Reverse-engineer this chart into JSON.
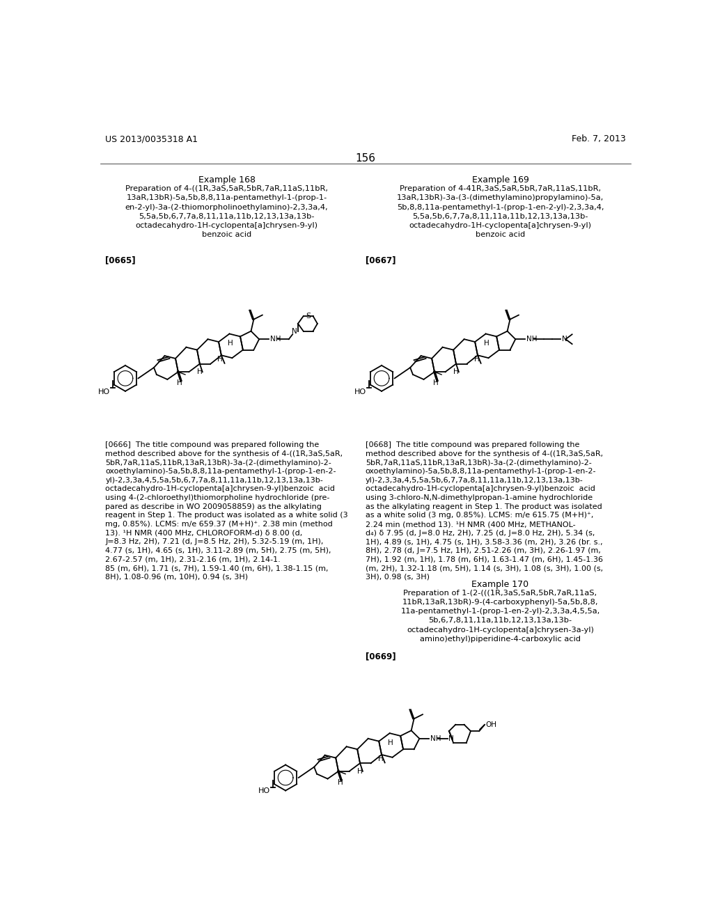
{
  "page_number": "156",
  "patent_number": "US 2013/0035318 A1",
  "patent_date": "Feb. 7, 2013",
  "bg_color": "#ffffff",
  "text_color": "#000000",
  "header_fontsize": 9,
  "body_fontsize": 8,
  "title_fontsize": 9,
  "example168_title": "Example 168",
  "example168_prep": "Preparation of 4-((1R,3aS,5aR,5bR,7aR,11aS,11bR,\n13aR,13bR)-5a,5b,8,8,11a-pentamethyl-1-(prop-1-\nen-2-yl)-3a-(2-thiomorpholinoethylamino)-2,3,3a,4,\n5,5a,5b,6,7,7a,8,11,11a,11b,12,13,13a,13b-\noctadecahydro-1H-cyclopenta[a]chrysen-9-yl)\nbenzoic acid",
  "example168_ref": "[0665]",
  "example168_body": "[0666]  The title compound was prepared following the\nmethod described above for the synthesis of 4-((1R,3aS,5aR,\n5bR,7aR,11aS,11bR,13aR,13bR)-3a-(2-(dimethylamino)-2-\noxoethylamino)-5a,5b,8,8,11a-pentamethyl-1-(prop-1-en-2-\nyl)-2,3,3a,4,5,5a,5b,6,7,7a,8,11,11a,11b,12,13,13a,13b-\noctadecahydro-1H-cyclopenta[a]chrysen-9-yl)benzoic  acid\nusing 4-(2-chloroethyl)thiomorpholine hydrochloride (pre-\npared as describe in WO 2009058859) as the alkylating\nreagent in Step 1. The product was isolated as a white solid (3\nmg, 0.85%). LCMS: m/e 659.37 (M+H)⁺. 2.38 min (method\n13). ¹H NMR (400 MHz, CHLOROFORM-d) δ 8.00 (d,\nJ=8.3 Hz, 2H), 7.21 (d, J=8.5 Hz, 2H), 5.32-5.19 (m, 1H),\n4.77 (s, 1H), 4.65 (s, 1H), 3.11-2.89 (m, 5H), 2.75 (m, 5H),\n2.67-2.57 (m, 1H), 2.31-2.16 (m, 1H), 2.14-1.\n85 (m, 6H), 1.71 (s, 7H), 1.59-1.40 (m, 6H), 1.38-1.15 (m,\n8H), 1.08-0.96 (m, 10H), 0.94 (s, 3H)",
  "example169_title": "Example 169",
  "example169_prep": "Preparation of 4-41R,3aS,5aR,5bR,7aR,11aS,11bR,\n13aR,13bR)-3a-(3-(dimethylamino)propylamino)-5a,\n5b,8,8,11a-pentamethyl-1-(prop-1-en-2-yl)-2,3,3a,4,\n5,5a,5b,6,7,7a,8,11,11a,11b,12,13,13a,13b-\noctadecahydro-1H-cyclopenta[a]chrysen-9-yl)\nbenzoic acid",
  "example169_ref": "[0667]",
  "example169_body": "[0668]  The title compound was prepared following the\nmethod described above for the synthesis of 4-((1R,3aS,5aR,\n5bR,7aR,11aS,11bR,13aR,13bR)-3a-(2-(dimethylamino)-2-\noxoethylamino)-5a,5b,8,8,11a-pentamethyl-1-(prop-1-en-2-\nyl)-2,3,3a,4,5,5a,5b,6,7,7a,8,11,11a,11b,12,13,13a,13b-\noctadecahydro-1H-cyclopenta[a]chrysen-9-yl)benzoic  acid\nusing 3-chloro-N,N-dimethylpropan-1-amine hydrochloride\nas the alkylating reagent in Step 1. The product was isolated\nas a white solid (3 mg, 0.85%). LCMS: m/e 615.75 (M+H)⁺,\n2.24 min (method 13). ¹H NMR (400 MHz, METHANOL-\nd₄) δ 7.95 (d, J=8.0 Hz, 2H), 7.25 (d, J=8.0 Hz, 2H), 5.34 (s,\n1H), 4.89 (s, 1H), 4.75 (s, 1H), 3.58-3.36 (m, 2H), 3.26 (br. s.,\n8H), 2.78 (d, J=7.5 Hz, 1H), 2.51-2.26 (m, 3H), 2.26-1.97 (m,\n7H), 1.92 (m, 1H), 1.78 (m, 6H), 1.63-1.47 (m, 6H), 1.45-1.36\n(m, 2H), 1.32-1.18 (m, 5H), 1.14 (s, 3H), 1.08 (s, 3H), 1.00 (s,\n3H), 0.98 (s, 3H)",
  "example170_title": "Example 170",
  "example170_prep": "Preparation of 1-(2-(((1R,3aS,5aR,5bR,7aR,11aS,\n11bR,13aR,13bR)-9-(4-carboxyphenyl)-5a,5b,8,8,\n11a-pentamethyl-1-(prop-1-en-2-yl)-2,3,3a,4,5,5a,\n5b,6,7,8,11,11a,11b,12,13,13a,13b-\noctadecahydro-1H-cyclopenta[a]chrysen-3a-yl)\namino)ethyl)piperidine-4-carboxylic acid",
  "example170_ref": "[0669]"
}
